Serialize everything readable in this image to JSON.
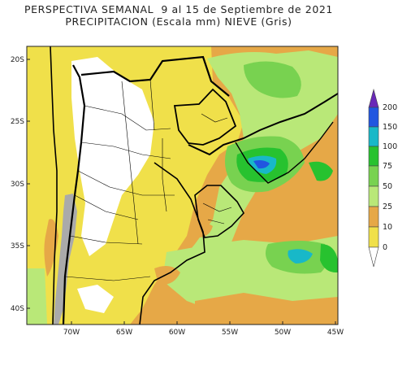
{
  "title": {
    "line1": "PERSPECTIVA SEMANAL  9 al 15 de Septiembre de 2021",
    "line2": "PRECIPITACION (Escala mm) NIEVE (Gris)"
  },
  "lat_labels": [
    "20S",
    "25S",
    "30S",
    "35S",
    "40S"
  ],
  "lon_labels": [
    "70W",
    "65W",
    "60W",
    "55W",
    "50W",
    "45W"
  ],
  "colorbar": {
    "labels": [
      "0",
      "10",
      "25",
      "50",
      "75",
      "100",
      "150",
      "200"
    ],
    "colors": {
      "below_0": "#ffffff",
      "0_10": "#f0e04a",
      "10_25": "#e6a847",
      "25_50": "#b9e878",
      "50_75": "#78d250",
      "75_100": "#27c22f",
      "100_150": "#18b8c8",
      "150_200": "#2156e0",
      "above_200": "#6a28b8"
    }
  },
  "map_colors": {
    "land_base": "#d9d64a",
    "ocean_base": "#e6a847",
    "snow": "#aaaaaa",
    "border": "#000000"
  }
}
